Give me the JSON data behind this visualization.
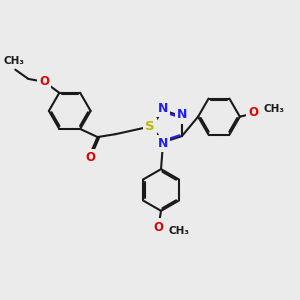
{
  "background_color": "#ebebeb",
  "bond_color": "#1a1a1a",
  "nitrogen_color": "#2020ff",
  "sulfur_color": "#b8b800",
  "oxygen_color": "#dd0000",
  "line_width": 1.5,
  "font_size": 8.5,
  "figsize": [
    3.0,
    3.0
  ],
  "dpi": 100,
  "xlim": [
    0,
    10
  ],
  "ylim": [
    0,
    10
  ]
}
